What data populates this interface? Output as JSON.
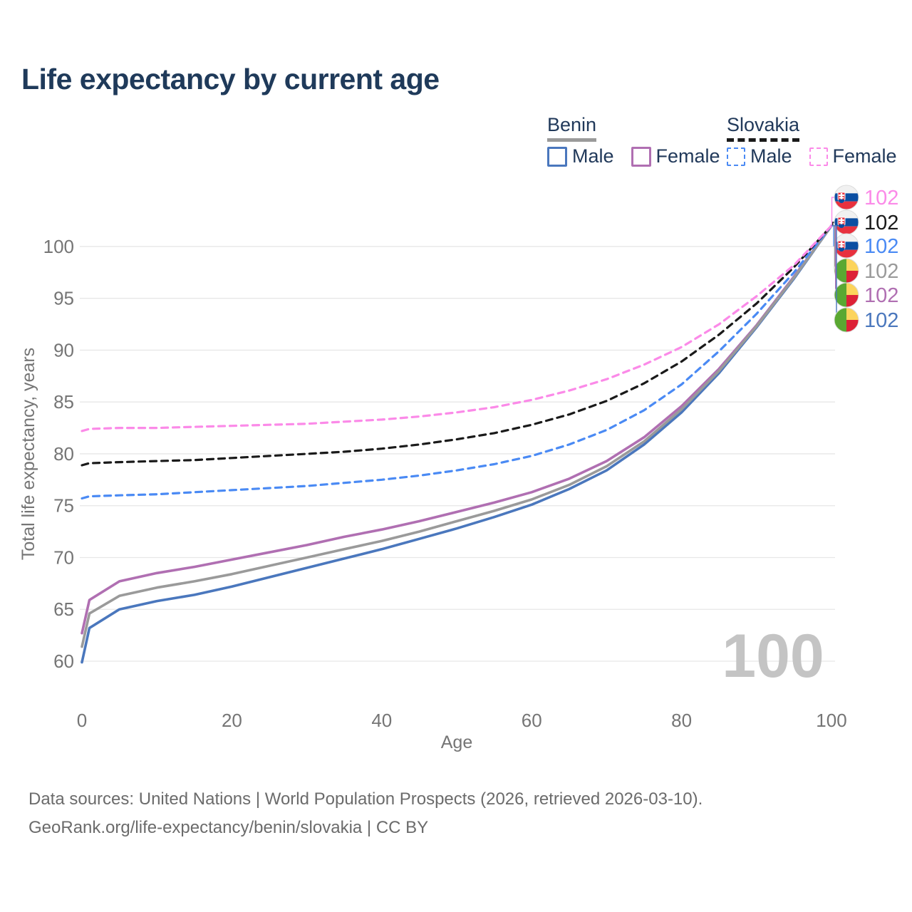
{
  "title": "Life expectancy by current age",
  "watermark": "100",
  "legend": {
    "groups": [
      {
        "country": "Benin",
        "line_style": "solid",
        "underline_color": "#9a9a9a",
        "items": [
          {
            "label": "Male",
            "color": "#4a77bd",
            "dashed": false
          },
          {
            "label": "Female",
            "color": "#b06fb2",
            "dashed": false
          }
        ]
      },
      {
        "country": "Slovakia",
        "line_style": "dashed",
        "underline_color": "#1a1a1a",
        "items": [
          {
            "label": "Male",
            "color": "#4a8af4",
            "dashed": true
          },
          {
            "label": "Female",
            "color": "#fb8ae8",
            "dashed": true
          }
        ]
      }
    ]
  },
  "source_line1": "Data sources: United Nations | World Population Prospects (2026, retrieved 2026-03-10).",
  "source_line2": "GeoRank.org/life-expectancy/benin/slovakia | CC BY",
  "chart_data": {
    "type": "line",
    "title": "Life expectancy by current age",
    "xlabel": "Age",
    "ylabel": "Total life expectancy, years",
    "xlim": [
      0,
      100
    ],
    "ylim": [
      60,
      102.5
    ],
    "xticks": [
      0,
      20,
      40,
      60,
      80,
      100
    ],
    "yticks": [
      60,
      65,
      70,
      75,
      80,
      85,
      90,
      95,
      100
    ],
    "grid": true,
    "legend_position": "top-right",
    "x": [
      0,
      1,
      5,
      10,
      15,
      20,
      25,
      30,
      35,
      40,
      45,
      50,
      55,
      60,
      65,
      70,
      75,
      80,
      85,
      90,
      95,
      100
    ],
    "series": [
      {
        "name": "Slovakia Female",
        "country": "Slovakia",
        "sex": "Female",
        "flag": "slovakia",
        "color": "#fb8ae8",
        "dash": true,
        "end_label": "102",
        "values": [
          82.2,
          82.4,
          82.5,
          82.5,
          82.6,
          82.7,
          82.8,
          82.9,
          83.1,
          83.3,
          83.6,
          84.0,
          84.5,
          85.2,
          86.1,
          87.2,
          88.6,
          90.3,
          92.5,
          95.2,
          98.2,
          102
        ]
      },
      {
        "name": "Slovakia",
        "country": "Slovakia",
        "sex": "Both",
        "flag": "slovakia",
        "color": "#1a1a1a",
        "dash": true,
        "end_label": "102",
        "values": [
          78.9,
          79.1,
          79.2,
          79.3,
          79.4,
          79.6,
          79.8,
          80.0,
          80.2,
          80.5,
          80.9,
          81.4,
          82.0,
          82.8,
          83.8,
          85.1,
          86.8,
          88.9,
          91.5,
          94.5,
          98.0,
          102
        ]
      },
      {
        "name": "Slovakia Male",
        "country": "Slovakia",
        "sex": "Male",
        "flag": "slovakia",
        "color": "#4a8af4",
        "dash": true,
        "end_label": "102",
        "values": [
          75.7,
          75.9,
          76.0,
          76.1,
          76.3,
          76.5,
          76.7,
          76.9,
          77.2,
          77.5,
          77.9,
          78.4,
          79.0,
          79.8,
          80.9,
          82.3,
          84.2,
          86.7,
          89.9,
          93.5,
          97.5,
          102
        ]
      },
      {
        "name": "Benin",
        "country": "Benin",
        "sex": "Both",
        "flag": "benin",
        "color": "#9a9a9a",
        "dash": false,
        "end_label": "102",
        "values": [
          61.4,
          64.6,
          66.3,
          67.1,
          67.7,
          68.4,
          69.2,
          70.0,
          70.8,
          71.6,
          72.5,
          73.5,
          74.5,
          75.6,
          77.0,
          78.8,
          81.2,
          84.3,
          88.0,
          92.3,
          97.0,
          102
        ]
      },
      {
        "name": "Benin Female",
        "country": "Benin",
        "sex": "Female",
        "flag": "benin",
        "color": "#b06fb2",
        "dash": false,
        "end_label": "102",
        "values": [
          62.7,
          65.9,
          67.7,
          68.5,
          69.1,
          69.8,
          70.5,
          71.2,
          72.0,
          72.7,
          73.5,
          74.4,
          75.3,
          76.3,
          77.6,
          79.3,
          81.6,
          84.6,
          88.2,
          92.4,
          97.1,
          102
        ]
      },
      {
        "name": "Benin Male",
        "country": "Benin",
        "sex": "Male",
        "flag": "benin",
        "color": "#4a77bd",
        "dash": false,
        "end_label": "102",
        "values": [
          59.9,
          63.2,
          65.0,
          65.8,
          66.4,
          67.2,
          68.1,
          69.0,
          69.9,
          70.8,
          71.8,
          72.8,
          73.9,
          75.1,
          76.6,
          78.4,
          80.9,
          84.0,
          87.8,
          92.2,
          96.9,
          102
        ]
      }
    ],
    "flag_colors": {
      "slovakia": {
        "white": "#f1f1f1",
        "blue": "#0b4ea2",
        "red": "#e8313e"
      },
      "benin": {
        "green": "#5aa832",
        "yellow": "#fcd45c",
        "red": "#dd2137"
      }
    },
    "watermark_color": "#c4c4c4",
    "grid_color": "#e7e7e7",
    "axis_text_color": "#757575"
  }
}
